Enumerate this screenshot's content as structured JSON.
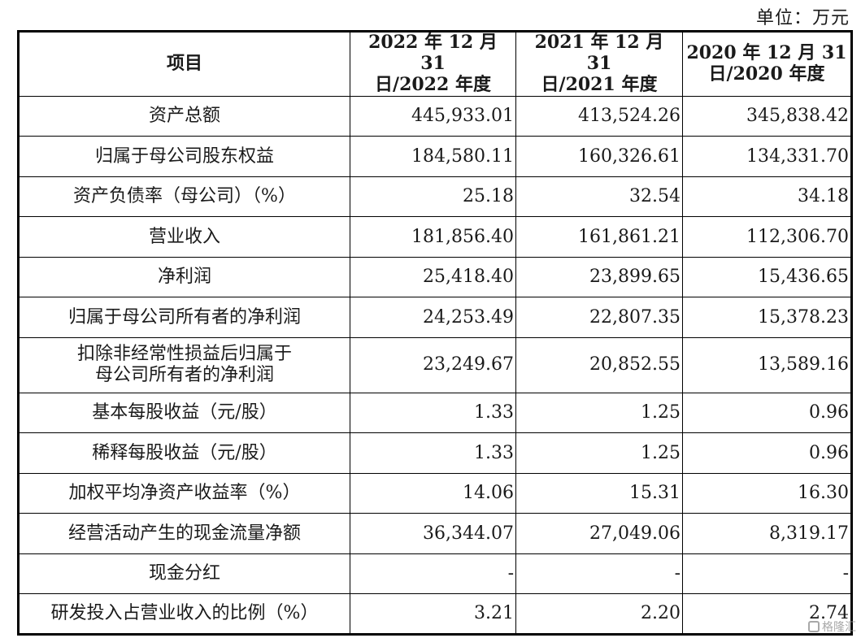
{
  "unit": "单位：万元",
  "headers": [
    "项目",
    "2022 年 12 月 31 日/2022 年度",
    "2021 年 12 月 31 日/2021 年度",
    "2020 年 12 月 31 日/2020 年度"
  ],
  "header_lines": [
    [
      "项目"
    ],
    [
      "2022 年 12 月 31",
      "日/2022 年度"
    ],
    [
      "2021 年 12 月 31",
      "日/2021 年度"
    ],
    [
      "2020 年 12 月 31",
      "日/2020 年度"
    ]
  ],
  "rows": [
    {
      "item": [
        "资产总额"
      ],
      "v": [
        "445,933.01",
        "413,524.26",
        "345,838.42"
      ]
    },
    {
      "item": [
        "归属于母公司股东权益"
      ],
      "v": [
        "184,580.11",
        "160,326.61",
        "134,331.70"
      ]
    },
    {
      "item": [
        "资产负债率（母公司）（%）"
      ],
      "v": [
        "25.18",
        "32.54",
        "34.18"
      ]
    },
    {
      "item": [
        "营业收入"
      ],
      "v": [
        "181,856.40",
        "161,861.21",
        "112,306.70"
      ]
    },
    {
      "item": [
        "净利润"
      ],
      "v": [
        "25,418.40",
        "23,899.65",
        "15,436.65"
      ]
    },
    {
      "item": [
        "归属于母公司所有者的净利润"
      ],
      "v": [
        "24,253.49",
        "22,807.35",
        "15,378.23"
      ]
    },
    {
      "item": [
        "扣除非经常性损益后归属于",
        "母公司所有者的净利润"
      ],
      "v": [
        "23,249.67",
        "20,852.55",
        "13,589.16"
      ]
    },
    {
      "item": [
        "基本每股收益（元/股）"
      ],
      "v": [
        "1.33",
        "1.25",
        "0.96"
      ]
    },
    {
      "item": [
        "稀释每股收益（元/股）"
      ],
      "v": [
        "1.33",
        "1.25",
        "0.96"
      ]
    },
    {
      "item": [
        "加权平均净资产收益率（%）"
      ],
      "v": [
        "14.06",
        "15.31",
        "16.30"
      ]
    },
    {
      "item": [
        "经营活动产生的现金流量净额"
      ],
      "v": [
        "36,344.07",
        "27,049.06",
        "8,319.17"
      ]
    },
    {
      "item": [
        "现金分红"
      ],
      "v": [
        "-",
        "-",
        "-"
      ]
    },
    {
      "item": [
        "研发投入占营业收入的比例（%）"
      ],
      "v": [
        "3.21",
        "2.20",
        "2.74"
      ]
    }
  ],
  "watermark": "格隆汇"
}
